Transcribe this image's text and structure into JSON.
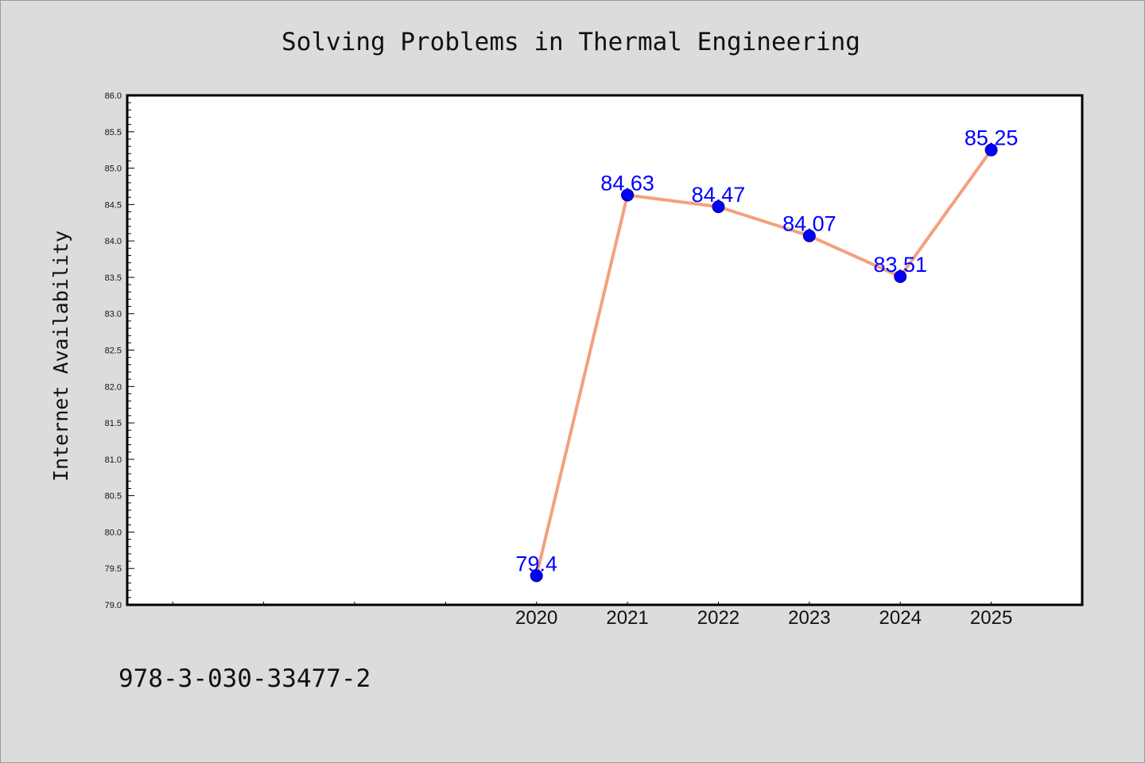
{
  "chart_data": {
    "type": "line",
    "title": "Solving Problems in Thermal Engineering",
    "xlabel": "",
    "ylabel": "Internet Availability",
    "categories": [
      "2020",
      "2021",
      "2022",
      "2023",
      "2024",
      "2025"
    ],
    "series": [
      {
        "values": [
          79.4,
          84.63,
          84.47,
          84.07,
          83.51,
          85.25
        ],
        "labels": [
          "79.4",
          "84.63",
          "84.47",
          "84.07",
          "83.51",
          "85.25"
        ]
      }
    ],
    "x_range": [
      2015.5,
      2026
    ],
    "ylim": [
      79.0,
      86.0
    ],
    "y_ticks": [
      "79.0",
      "79.5",
      "80.0",
      "80.5",
      "81.0",
      "81.5",
      "82.0",
      "82.5",
      "83.0",
      "83.5",
      "84.0",
      "84.5",
      "85.0",
      "85.5",
      "86.0"
    ],
    "grid": false,
    "legend": "none",
    "colors": {
      "line": "#f4a07e",
      "marker": "#0000ff",
      "data_label": "#0000ff",
      "plot_background": "#ffffff",
      "figure_background": "#dcdcdc"
    }
  },
  "footer": {
    "text": "978-3-030-33477-2"
  }
}
